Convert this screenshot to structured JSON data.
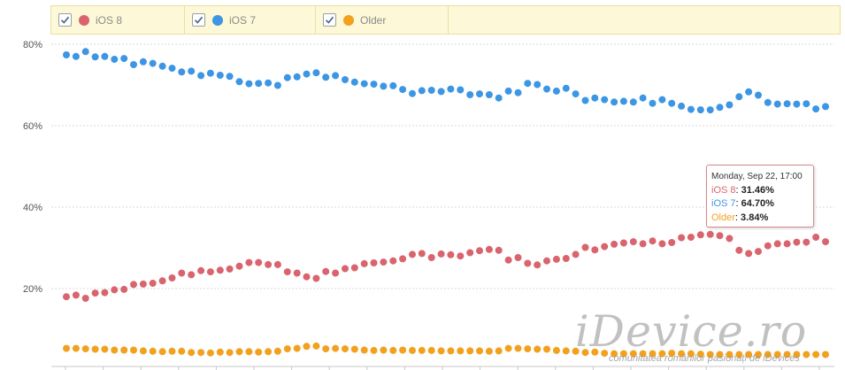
{
  "legend": [
    {
      "label": "iOS 8",
      "color": "#d9646e",
      "checked": true
    },
    {
      "label": "iOS 7",
      "color": "#3d96e3",
      "checked": true
    },
    {
      "label": "Older",
      "color": "#f2a11f",
      "checked": true
    }
  ],
  "tooltip": {
    "title": "Monday, Sep 22, 17:00",
    "rows": [
      {
        "label": "iOS 8",
        "value": "31.46%",
        "color": "#d9646e"
      },
      {
        "label": "iOS 7",
        "value": "64.70%",
        "color": "#3d96e3"
      },
      {
        "label": "Older",
        "value": "3.84%",
        "color": "#f2a11f"
      }
    ]
  },
  "watermark": {
    "brand": "iDevice.ro",
    "tagline": "comunitatea românilor pasionați de iDevices"
  },
  "chart_data": {
    "type": "scatter",
    "title": "",
    "xlabel": "",
    "ylabel": "",
    "ylim": [
      0,
      85
    ],
    "yticks": [
      "20%",
      "40%",
      "60%",
      "80%"
    ],
    "ytick_values": [
      20,
      40,
      60,
      80
    ],
    "grid": true,
    "legend_position": "top",
    "series": [
      {
        "name": "iOS 8",
        "color": "#d9646e",
        "values": [
          18.0,
          18.4,
          17.6,
          18.9,
          19.0,
          19.7,
          19.8,
          21.0,
          21.1,
          21.3,
          21.9,
          22.6,
          23.8,
          23.4,
          24.4,
          24.1,
          24.5,
          24.8,
          25.5,
          26.4,
          26.4,
          25.9,
          25.9,
          24.1,
          23.8,
          22.9,
          22.5,
          24.2,
          23.8,
          24.9,
          25.1,
          26.1,
          26.3,
          26.5,
          26.8,
          27.3,
          28.4,
          28.6,
          27.6,
          28.5,
          28.3,
          28.0,
          28.8,
          29.3,
          29.6,
          29.4,
          27.0,
          27.6,
          26.2,
          25.8,
          26.8,
          27.2,
          27.4,
          28.4,
          30.1,
          29.5,
          30.3,
          30.9,
          31.2,
          31.5,
          31.0,
          31.7,
          31.0,
          31.3,
          32.5,
          32.6,
          33.2,
          33.3,
          33.0,
          32.3,
          29.4,
          28.6,
          29.1,
          30.5,
          31.0,
          31.0,
          31.4,
          31.4,
          32.6,
          31.5
        ]
      },
      {
        "name": "iOS 7",
        "color": "#3d96e3",
        "values": [
          77.4,
          77.0,
          78.2,
          76.9,
          77.0,
          76.3,
          76.5,
          75.0,
          75.7,
          75.3,
          74.6,
          74.1,
          73.2,
          73.4,
          72.3,
          72.9,
          72.4,
          72.1,
          70.8,
          70.3,
          70.4,
          70.5,
          69.9,
          71.8,
          72.0,
          72.7,
          73.0,
          71.9,
          72.3,
          71.3,
          70.7,
          70.3,
          70.2,
          69.7,
          69.8,
          68.9,
          67.9,
          68.6,
          68.7,
          68.4,
          69.0,
          68.8,
          67.6,
          67.8,
          67.6,
          66.8,
          68.5,
          68.1,
          70.4,
          70.1,
          69.0,
          68.5,
          69.2,
          67.8,
          66.2,
          66.8,
          66.4,
          65.8,
          66.0,
          65.8,
          66.8,
          65.5,
          66.4,
          65.5,
          64.8,
          64.0,
          63.9,
          63.9,
          64.5,
          65.1,
          67.1,
          68.3,
          67.5,
          65.7,
          65.3,
          65.4,
          65.3,
          65.4,
          64.1,
          64.7
        ]
      },
      {
        "name": "Older",
        "color": "#f2a11f",
        "values": [
          5.3,
          5.3,
          5.2,
          5.1,
          5.1,
          4.9,
          4.9,
          4.9,
          4.7,
          4.6,
          4.5,
          4.6,
          4.6,
          4.3,
          4.3,
          4.2,
          4.4,
          4.3,
          4.5,
          4.5,
          4.4,
          4.5,
          4.6,
          5.2,
          5.3,
          5.8,
          5.9,
          5.2,
          5.3,
          5.2,
          5.1,
          4.9,
          4.8,
          4.9,
          4.8,
          4.9,
          4.8,
          4.8,
          4.8,
          4.7,
          4.7,
          4.7,
          4.7,
          4.7,
          4.6,
          4.7,
          5.3,
          5.3,
          5.2,
          5.1,
          5.1,
          4.8,
          4.7,
          4.6,
          4.3,
          4.4,
          4.1,
          4.0,
          4.0,
          4.0,
          4.0,
          4.0,
          4.0,
          4.1,
          4.0,
          4.0,
          3.9,
          3.8,
          3.8,
          3.8,
          3.8,
          3.8,
          3.8,
          3.8,
          3.8,
          3.8,
          3.8,
          3.8,
          3.8,
          3.8
        ]
      }
    ]
  }
}
